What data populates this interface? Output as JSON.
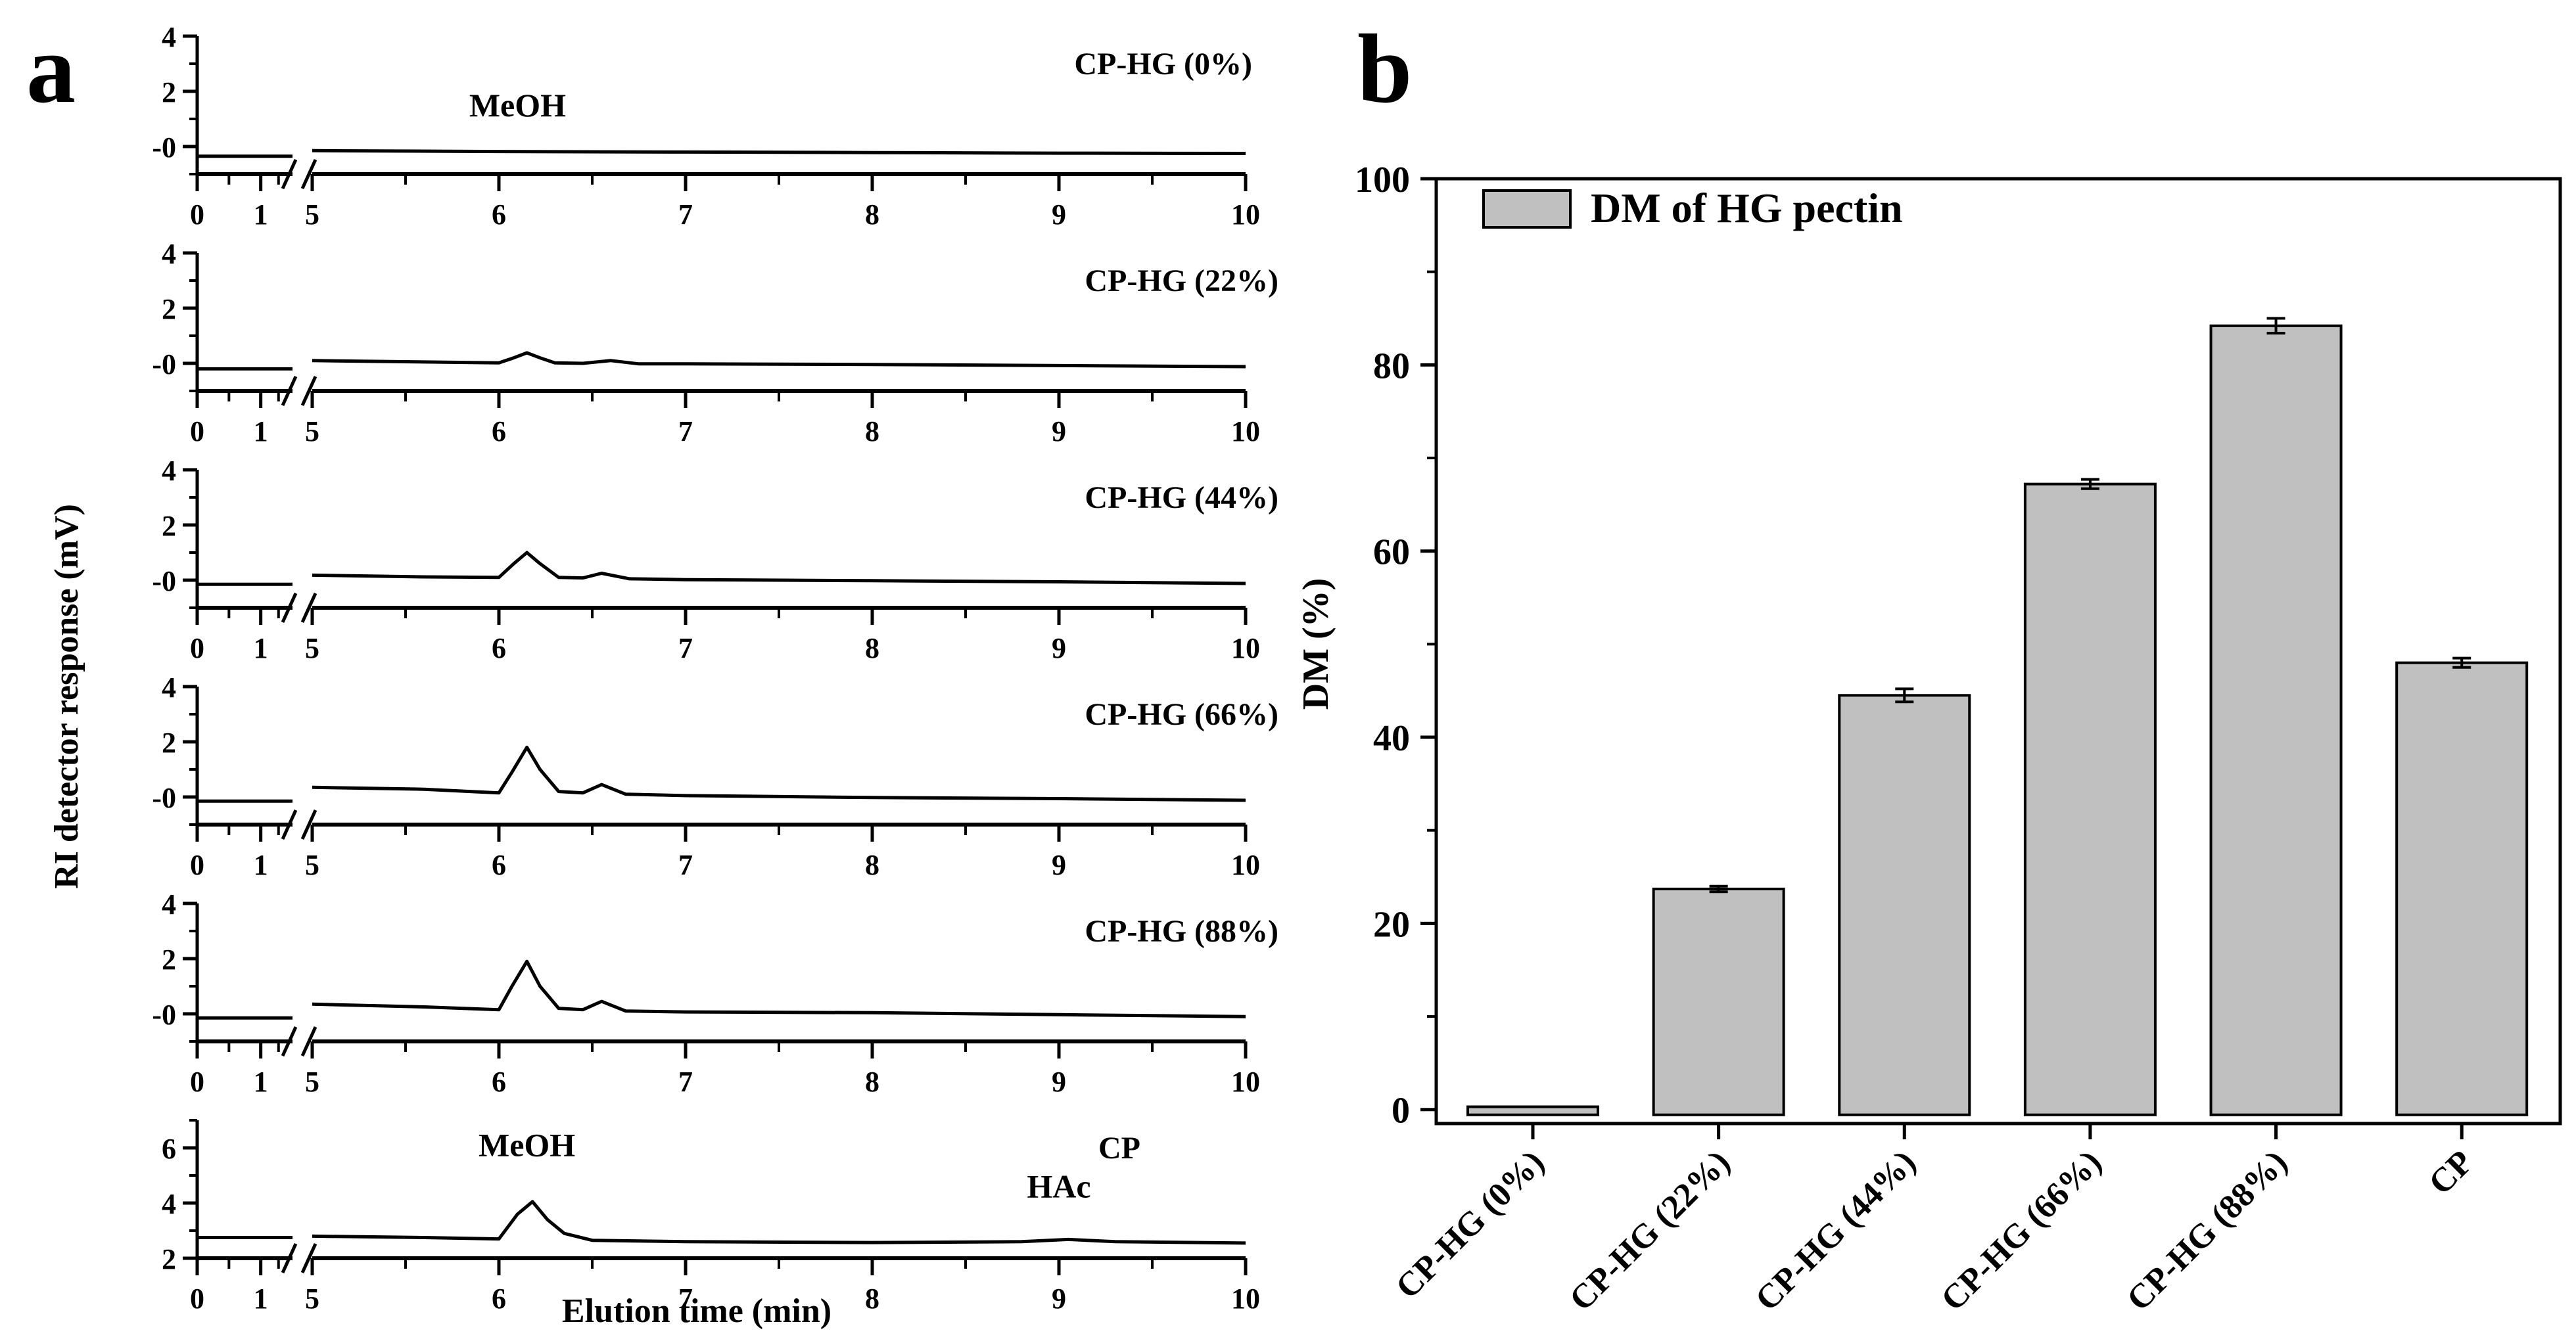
{
  "figure": {
    "panel_a_label": "a",
    "panel_b_label": "b"
  },
  "chart_data": [
    {
      "type": "line",
      "panel": "a",
      "ylabel": "RI detector response (mV)",
      "xlabel": "Elution time (min)",
      "x_ticks": [
        "0",
        "1",
        "5",
        "6",
        "7",
        "8",
        "9",
        "10"
      ],
      "x_axis_break": [
        1.5,
        5
      ],
      "series": [
        {
          "name": "CP-HG (0%)",
          "ylim": [
            -1,
            4
          ],
          "y_ticks": [
            "-0",
            "2",
            "4"
          ],
          "annotations": [
            {
              "text": "MeOH",
              "x": 6.1,
              "y": 1.1
            }
          ],
          "points": [
            [
              0,
              -0.35
            ],
            [
              1.5,
              -0.35
            ],
            [
              5,
              -0.15
            ],
            [
              6,
              -0.18
            ],
            [
              7,
              -0.2
            ],
            [
              8,
              -0.22
            ],
            [
              9,
              -0.24
            ],
            [
              10,
              -0.25
            ]
          ]
        },
        {
          "name": "CP-HG (22%)",
          "ylim": [
            -1,
            4
          ],
          "y_ticks": [
            "-0",
            "2",
            "4"
          ],
          "annotations": [],
          "points": [
            [
              0,
              -0.2
            ],
            [
              1.5,
              -0.2
            ],
            [
              5,
              0.1
            ],
            [
              5.6,
              0.05
            ],
            [
              6.0,
              0.02
            ],
            [
              6.08,
              0.2
            ],
            [
              6.15,
              0.38
            ],
            [
              6.22,
              0.2
            ],
            [
              6.3,
              0.02
            ],
            [
              6.45,
              0.0
            ],
            [
              6.6,
              0.1
            ],
            [
              6.75,
              -0.02
            ],
            [
              7,
              -0.02
            ],
            [
              8,
              -0.04
            ],
            [
              9,
              -0.08
            ],
            [
              10,
              -0.12
            ]
          ]
        },
        {
          "name": "CP-HG (44%)",
          "ylim": [
            -1,
            4
          ],
          "y_ticks": [
            "-0",
            "2",
            "4"
          ],
          "annotations": [],
          "points": [
            [
              0,
              -0.15
            ],
            [
              1.5,
              -0.15
            ],
            [
              5,
              0.18
            ],
            [
              5.6,
              0.12
            ],
            [
              6.0,
              0.1
            ],
            [
              6.08,
              0.6
            ],
            [
              6.15,
              1.0
            ],
            [
              6.22,
              0.6
            ],
            [
              6.32,
              0.1
            ],
            [
              6.45,
              0.08
            ],
            [
              6.55,
              0.25
            ],
            [
              6.7,
              0.05
            ],
            [
              7,
              0.02
            ],
            [
              8,
              -0.02
            ],
            [
              9,
              -0.06
            ],
            [
              10,
              -0.12
            ]
          ]
        },
        {
          "name": "CP-HG (66%)",
          "ylim": [
            -1,
            4
          ],
          "y_ticks": [
            "-0",
            "2",
            "4"
          ],
          "annotations": [],
          "points": [
            [
              0,
              -0.15
            ],
            [
              1.5,
              -0.15
            ],
            [
              5,
              0.35
            ],
            [
              5.6,
              0.28
            ],
            [
              6.0,
              0.15
            ],
            [
              6.07,
              0.9
            ],
            [
              6.15,
              1.8
            ],
            [
              6.22,
              1.0
            ],
            [
              6.32,
              0.2
            ],
            [
              6.45,
              0.15
            ],
            [
              6.55,
              0.45
            ],
            [
              6.68,
              0.1
            ],
            [
              7,
              0.05
            ],
            [
              8,
              -0.02
            ],
            [
              9,
              -0.06
            ],
            [
              10,
              -0.12
            ]
          ]
        },
        {
          "name": "CP-HG (88%)",
          "ylim": [
            -1,
            4
          ],
          "y_ticks": [
            "-0",
            "2",
            "4"
          ],
          "annotations": [],
          "points": [
            [
              0,
              -0.15
            ],
            [
              1.5,
              -0.15
            ],
            [
              5,
              0.35
            ],
            [
              5.6,
              0.25
            ],
            [
              6.0,
              0.15
            ],
            [
              6.07,
              1.0
            ],
            [
              6.15,
              1.9
            ],
            [
              6.22,
              1.0
            ],
            [
              6.32,
              0.2
            ],
            [
              6.45,
              0.15
            ],
            [
              6.55,
              0.45
            ],
            [
              6.68,
              0.1
            ],
            [
              7,
              0.07
            ],
            [
              8,
              0.04
            ],
            [
              9,
              -0.03
            ],
            [
              10,
              -0.1
            ]
          ]
        },
        {
          "name": "CP",
          "ylim": [
            2,
            7
          ],
          "y_ticks": [
            "2",
            "4",
            "6"
          ],
          "annotations": [
            {
              "text": "MeOH",
              "x": 6.15,
              "y": 5.7
            },
            {
              "text": "HAc",
              "x": 9.0,
              "y": 4.2
            }
          ],
          "points": [
            [
              0,
              2.75
            ],
            [
              1.5,
              2.75
            ],
            [
              5,
              2.8
            ],
            [
              5.6,
              2.75
            ],
            [
              6.0,
              2.7
            ],
            [
              6.1,
              3.6
            ],
            [
              6.18,
              4.05
            ],
            [
              6.26,
              3.4
            ],
            [
              6.35,
              2.9
            ],
            [
              6.5,
              2.65
            ],
            [
              7,
              2.6
            ],
            [
              8,
              2.57
            ],
            [
              8.8,
              2.6
            ],
            [
              9.05,
              2.68
            ],
            [
              9.3,
              2.6
            ],
            [
              10,
              2.55
            ]
          ]
        }
      ]
    },
    {
      "type": "bar",
      "panel": "b",
      "categories": [
        "CP-HG (0%)",
        "CP-HG (22%)",
        "CP-HG (44%)",
        "CP-HG (66%)",
        "CP-HG (88%)",
        "CP"
      ],
      "values": [
        0,
        23.7,
        44.5,
        67.2,
        84.2,
        48.0
      ],
      "errors": [
        0.3,
        0.3,
        0.7,
        0.5,
        0.8,
        0.5
      ],
      "ylabel": "DM (%)",
      "xlabel": "",
      "ylim": [
        -1.5,
        100
      ],
      "y_ticks": [
        "0",
        "20",
        "40",
        "60",
        "80",
        "100"
      ],
      "legend": {
        "label": "DM of HG pectin",
        "position": "top-left"
      },
      "colors": {
        "bar_fill": "#c0c0c0",
        "bar_stroke": "#000000"
      }
    }
  ]
}
